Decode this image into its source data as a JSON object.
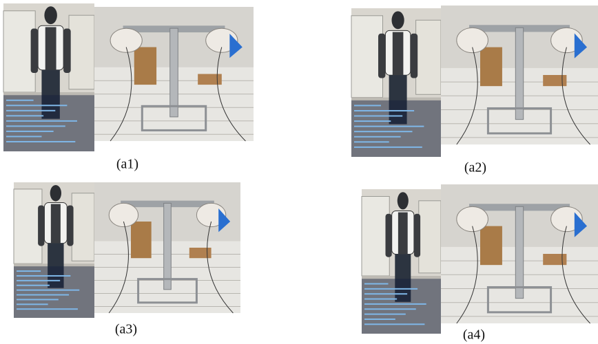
{
  "panels": [
    {
      "label": "(a1)"
    },
    {
      "label": "(a2)"
    },
    {
      "label": "(a3)"
    },
    {
      "label": "(a4)"
    }
  ]
}
